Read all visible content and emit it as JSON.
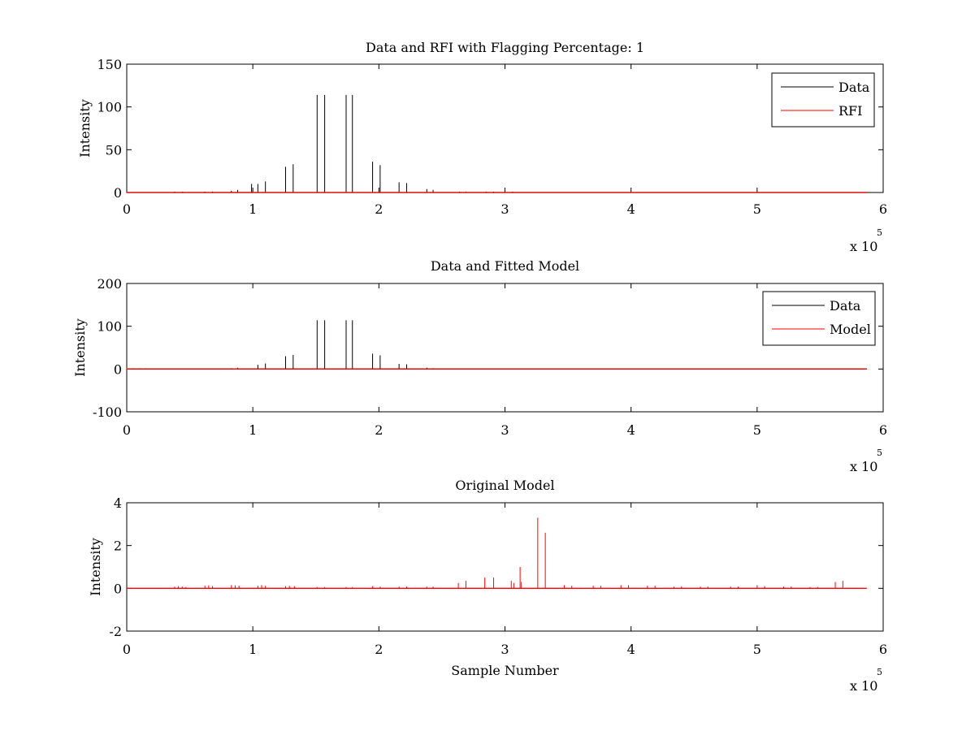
{
  "chart_data": [
    {
      "type": "line",
      "title": "Data and RFI with Flagging Percentage: 1",
      "xlabel": "",
      "ylabel": "Intensity",
      "xlim": [
        0,
        6
      ],
      "ylim": [
        0,
        150
      ],
      "xticks": [
        "0",
        "1",
        "2",
        "3",
        "4",
        "5",
        "6"
      ],
      "yticks": [
        "0",
        "50",
        "100",
        "150"
      ],
      "x_scale_label": "x 10",
      "x_scale_exponent": "5",
      "legend": {
        "position": "top-right",
        "entries": [
          "Data",
          "RFI"
        ]
      },
      "series": [
        {
          "name": "Data",
          "color": "#000000",
          "spikes": [
            {
              "x": 0.38,
              "y": 1
            },
            {
              "x": 0.44,
              "y": 1
            },
            {
              "x": 0.62,
              "y": 1
            },
            {
              "x": 0.68,
              "y": 1
            },
            {
              "x": 0.83,
              "y": 2
            },
            {
              "x": 0.88,
              "y": 3
            },
            {
              "x": 0.99,
              "y": 10
            },
            {
              "x": 1.04,
              "y": 10
            },
            {
              "x": 1.1,
              "y": 13
            },
            {
              "x": 1.26,
              "y": 30
            },
            {
              "x": 1.32,
              "y": 33
            },
            {
              "x": 1.51,
              "y": 114
            },
            {
              "x": 1.57,
              "y": 114
            },
            {
              "x": 1.74,
              "y": 114
            },
            {
              "x": 1.79,
              "y": 114
            },
            {
              "x": 1.95,
              "y": 36
            },
            {
              "x": 2.01,
              "y": 32
            },
            {
              "x": 2.16,
              "y": 12
            },
            {
              "x": 2.22,
              "y": 11
            },
            {
              "x": 2.38,
              "y": 4
            },
            {
              "x": 2.43,
              "y": 3
            },
            {
              "x": 2.64,
              "y": 1
            },
            {
              "x": 2.69,
              "y": 1
            },
            {
              "x": 2.85,
              "y": 1
            },
            {
              "x": 2.91,
              "y": 1
            },
            {
              "x": 3.06,
              "y": 1
            }
          ]
        },
        {
          "name": "RFI",
          "color": "#ff0000",
          "spikes": []
        }
      ],
      "xmax_data": 5.87
    },
    {
      "type": "line",
      "title": "Data and Fitted Model",
      "xlabel": "",
      "ylabel": "Intensity",
      "xlim": [
        0,
        6
      ],
      "ylim": [
        -100,
        200
      ],
      "xticks": [
        "0",
        "1",
        "2",
        "3",
        "4",
        "5",
        "6"
      ],
      "yticks": [
        "-100",
        "0",
        "100",
        "200"
      ],
      "x_scale_label": "x 10",
      "x_scale_exponent": "5",
      "legend": {
        "position": "top-right",
        "entries": [
          "Data",
          "Model"
        ]
      },
      "series": [
        {
          "name": "Data",
          "color": "#000000",
          "spikes": [
            {
              "x": 0.27,
              "y": 1
            },
            {
              "x": 0.38,
              "y": 1
            },
            {
              "x": 0.44,
              "y": 1
            },
            {
              "x": 0.62,
              "y": 1
            },
            {
              "x": 0.68,
              "y": 1
            },
            {
              "x": 0.83,
              "y": 2
            },
            {
              "x": 0.88,
              "y": 3
            },
            {
              "x": 1.04,
              "y": 10
            },
            {
              "x": 1.1,
              "y": 13
            },
            {
              "x": 1.26,
              "y": 30
            },
            {
              "x": 1.32,
              "y": 33
            },
            {
              "x": 1.51,
              "y": 114
            },
            {
              "x": 1.57,
              "y": 114
            },
            {
              "x": 1.74,
              "y": 114
            },
            {
              "x": 1.79,
              "y": 114
            },
            {
              "x": 1.95,
              "y": 36
            },
            {
              "x": 2.01,
              "y": 32
            },
            {
              "x": 2.16,
              "y": 12
            },
            {
              "x": 2.22,
              "y": 11
            },
            {
              "x": 2.38,
              "y": 3
            },
            {
              "x": 2.43,
              "y": 2
            },
            {
              "x": 2.64,
              "y": 1
            },
            {
              "x": 2.69,
              "y": 1
            },
            {
              "x": 2.85,
              "y": 1
            },
            {
              "x": 2.91,
              "y": 1
            },
            {
              "x": 3.06,
              "y": 1
            },
            {
              "x": 3.12,
              "y": 1
            },
            {
              "x": 3.26,
              "y": 1
            },
            {
              "x": 3.33,
              "y": 1
            },
            {
              "x": 3.7,
              "y": 1
            },
            {
              "x": 3.76,
              "y": 1
            },
            {
              "x": 4.32,
              "y": 1
            }
          ]
        },
        {
          "name": "Model",
          "color": "#ff0000",
          "spikes": [
            {
              "x": 0.0,
              "y": 2
            },
            {
              "x": 0.05,
              "y": 2
            },
            {
              "x": 0.1,
              "y": 2
            },
            {
              "x": 0.15,
              "y": 2
            }
          ]
        }
      ],
      "xmax_data": 5.87
    },
    {
      "type": "line",
      "title": "Original Model",
      "xlabel": "Sample Number",
      "ylabel": "Intensity",
      "xlim": [
        0,
        6
      ],
      "ylim": [
        -2,
        4
      ],
      "xticks": [
        "0",
        "1",
        "2",
        "3",
        "4",
        "5",
        "6"
      ],
      "yticks": [
        "-2",
        "0",
        "2",
        "4"
      ],
      "x_scale_label": "x 10",
      "x_scale_exponent": "5",
      "series": [
        {
          "name": "",
          "color": "#ff0000",
          "spikes": [
            {
              "x": 0.38,
              "y": 0.08
            },
            {
              "x": 0.41,
              "y": 0.1
            },
            {
              "x": 0.44,
              "y": 0.08
            },
            {
              "x": 0.47,
              "y": 0.06
            },
            {
              "x": 0.62,
              "y": 0.12
            },
            {
              "x": 0.65,
              "y": 0.14
            },
            {
              "x": 0.68,
              "y": 0.1
            },
            {
              "x": 0.83,
              "y": 0.15
            },
            {
              "x": 0.86,
              "y": 0.14
            },
            {
              "x": 0.89,
              "y": 0.12
            },
            {
              "x": 1.04,
              "y": 0.12
            },
            {
              "x": 1.07,
              "y": 0.15
            },
            {
              "x": 1.1,
              "y": 0.12
            },
            {
              "x": 1.26,
              "y": 0.1
            },
            {
              "x": 1.29,
              "y": 0.12
            },
            {
              "x": 1.33,
              "y": 0.1
            },
            {
              "x": 1.51,
              "y": 0.06
            },
            {
              "x": 1.57,
              "y": 0.06
            },
            {
              "x": 1.74,
              "y": 0.06
            },
            {
              "x": 1.79,
              "y": 0.06
            },
            {
              "x": 1.95,
              "y": 0.1
            },
            {
              "x": 2.01,
              "y": 0.08
            },
            {
              "x": 2.16,
              "y": 0.08
            },
            {
              "x": 2.22,
              "y": 0.08
            },
            {
              "x": 2.38,
              "y": 0.08
            },
            {
              "x": 2.43,
              "y": 0.08
            },
            {
              "x": 2.63,
              "y": 0.25
            },
            {
              "x": 2.69,
              "y": 0.35
            },
            {
              "x": 2.84,
              "y": 0.5
            },
            {
              "x": 2.91,
              "y": 0.5
            },
            {
              "x": 3.05,
              "y": 0.35
            },
            {
              "x": 3.07,
              "y": 0.25
            },
            {
              "x": 3.12,
              "y": 1.0
            },
            {
              "x": 3.13,
              "y": 0.3
            },
            {
              "x": 3.26,
              "y": 3.3
            },
            {
              "x": 3.32,
              "y": 2.6
            },
            {
              "x": 3.47,
              "y": 0.15
            },
            {
              "x": 3.53,
              "y": 0.12
            },
            {
              "x": 3.7,
              "y": 0.12
            },
            {
              "x": 3.76,
              "y": 0.12
            },
            {
              "x": 3.92,
              "y": 0.15
            },
            {
              "x": 3.98,
              "y": 0.15
            },
            {
              "x": 4.13,
              "y": 0.12
            },
            {
              "x": 4.19,
              "y": 0.12
            },
            {
              "x": 4.34,
              "y": 0.08
            },
            {
              "x": 4.4,
              "y": 0.08
            },
            {
              "x": 4.55,
              "y": 0.08
            },
            {
              "x": 4.61,
              "y": 0.08
            },
            {
              "x": 4.79,
              "y": 0.08
            },
            {
              "x": 4.85,
              "y": 0.08
            },
            {
              "x": 5.0,
              "y": 0.15
            },
            {
              "x": 5.06,
              "y": 0.1
            },
            {
              "x": 5.21,
              "y": 0.08
            },
            {
              "x": 5.27,
              "y": 0.08
            },
            {
              "x": 5.42,
              "y": 0.06
            },
            {
              "x": 5.48,
              "y": 0.06
            },
            {
              "x": 5.62,
              "y": 0.3
            },
            {
              "x": 5.68,
              "y": 0.35
            }
          ]
        }
      ],
      "xmax_data": 5.87
    }
  ]
}
